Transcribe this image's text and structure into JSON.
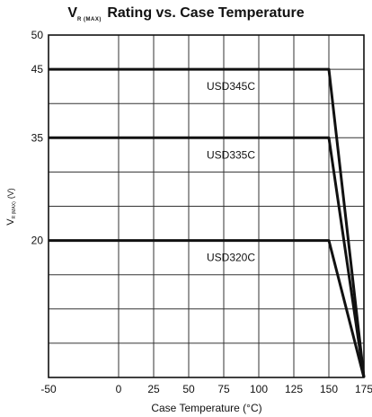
{
  "chart_data": {
    "type": "line",
    "title_symbol": "V",
    "title_subscript": "R (MAX)",
    "title_rest": "Rating vs. Case Temperature",
    "xlabel": "Case Temperature (°C)",
    "ylabel_symbol": "V",
    "ylabel_subscript": "R (MAX)",
    "ylabel_unit": "(V)",
    "xlim": [
      -50,
      175
    ],
    "ylim": [
      0,
      50
    ],
    "x_ticks": [
      -50,
      0,
      25,
      50,
      75,
      100,
      125,
      150,
      175
    ],
    "x_tick_labels": [
      "-50",
      "0",
      "25",
      "50",
      "75",
      "100",
      "125",
      "150",
      "175"
    ],
    "y_ticks": [
      20,
      35,
      45,
      50
    ],
    "y_tick_labels": [
      "20",
      "35",
      "45",
      "50"
    ],
    "grid": true,
    "series": [
      {
        "name": "USD345C",
        "x": [
          -50,
          150,
          175
        ],
        "y": [
          45,
          45,
          0
        ]
      },
      {
        "name": "USD335C",
        "x": [
          -50,
          150,
          175
        ],
        "y": [
          35,
          35,
          0
        ]
      },
      {
        "name": "USD320C",
        "x": [
          -50,
          150,
          175
        ],
        "y": [
          20,
          20,
          0
        ]
      }
    ],
    "annotations": [
      {
        "text": "USD345C",
        "x": 75,
        "y": 42.5
      },
      {
        "text": "USD335C",
        "x": 75,
        "y": 32.5
      },
      {
        "text": "USD320C",
        "x": 75,
        "y": 17.5
      }
    ]
  }
}
